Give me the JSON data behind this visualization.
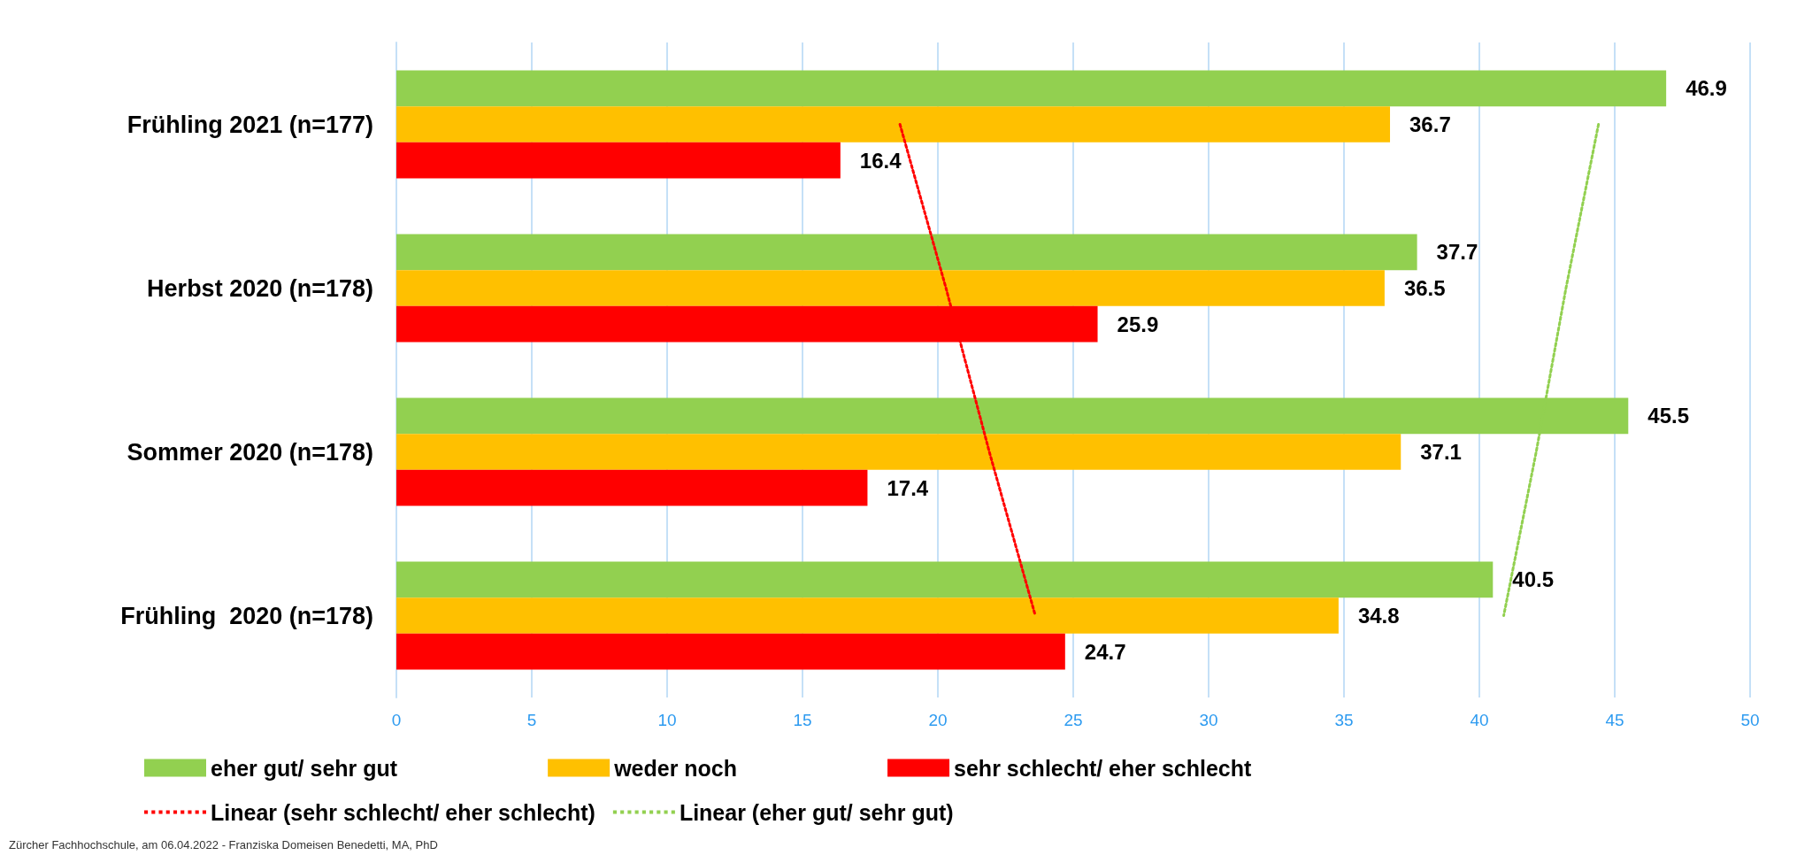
{
  "chart_data": {
    "type": "bar",
    "orientation": "horizontal",
    "categories": [
      "Frühling 2021 (n=177)",
      "Herbst 2020 (n=178)",
      "Sommer 2020 (n=178)",
      "Frühling  2020 (n=178)"
    ],
    "series": [
      {
        "name": "eher gut/ sehr gut",
        "color": "#92d050",
        "values": [
          46.9,
          37.7,
          45.5,
          40.5
        ],
        "value_labels": [
          "46.9",
          "37.7",
          "45.5",
          "40.5"
        ]
      },
      {
        "name": "weder noch",
        "color": "#ffc000",
        "values": [
          36.7,
          36.5,
          37.1,
          34.8
        ],
        "value_labels": [
          "36.7",
          "36.5",
          "37.1",
          "34.8"
        ]
      },
      {
        "name": "sehr schlecht/ eher schlecht",
        "color": "#ff0000",
        "values": [
          16.4,
          25.9,
          17.4,
          24.7
        ],
        "value_labels": [
          "16.4",
          "25.9",
          "17.4",
          "24.7"
        ]
      },
      {
        "name": "Linear (sehr schlecht/ eher schlecht)",
        "type": "line",
        "line_style": "dotted",
        "color": "#ff0000",
        "values": [
          18.6,
          20.3,
          21.9,
          23.6
        ]
      },
      {
        "name": "Linear (eher gut/ sehr gut)",
        "type": "line",
        "line_style": "dotted",
        "color": "#92d050",
        "values": [
          44.4,
          43.2,
          42.1,
          40.9
        ]
      }
    ],
    "xlim": [
      0,
      50
    ],
    "xticks": [
      0,
      5,
      10,
      15,
      20,
      25,
      30,
      35,
      40,
      45,
      50
    ],
    "grid": "x",
    "legend": "bottom",
    "marker": "none",
    "annotations": [
      "Zürcher Fachhochschule, am 06.04.2022 - Franziska Domeisen Benedetti, MA, PhD"
    ]
  }
}
